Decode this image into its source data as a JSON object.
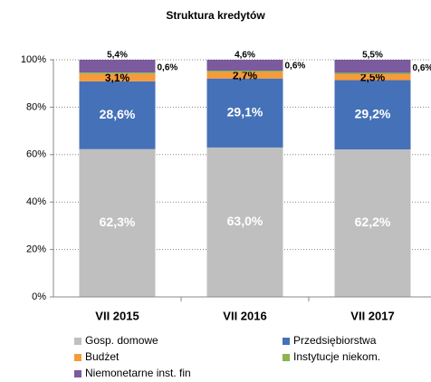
{
  "chart_data": {
    "type": "stacked_bar",
    "title": "Struktura kredytów",
    "categories": [
      "VII 2015",
      "VII 2016",
      "VII 2017"
    ],
    "series": [
      {
        "name": "Gosp. domowe",
        "color": "#bfbfbf",
        "values": [
          62.3,
          63.0,
          62.2
        ],
        "value_labels": [
          "62,3%",
          "63,0%",
          "62,2%"
        ]
      },
      {
        "name": "Przedsiębiorstwa",
        "color": "#4571b8",
        "values": [
          28.6,
          29.1,
          29.2
        ],
        "value_labels": [
          "28,6%",
          "29,1%",
          "29,2%"
        ]
      },
      {
        "name": "Budżet",
        "color": "#f79a3a",
        "values": [
          3.1,
          2.7,
          2.5
        ],
        "value_labels": [
          "3,1%",
          "2,7%",
          "2,5%"
        ]
      },
      {
        "name": "Instytucje niekom.",
        "color": "#8fb34a",
        "values": [
          0.6,
          0.6,
          0.6
        ],
        "value_labels": [
          "0,6%",
          "0,6%",
          "0,6%"
        ]
      },
      {
        "name": "Niemonetarne inst. fin",
        "color": "#7b5a9e",
        "values": [
          5.4,
          4.6,
          5.5
        ],
        "value_labels": [
          "5,4%",
          "4,6%",
          "5,5%"
        ]
      }
    ],
    "ylim": [
      0,
      100
    ],
    "yticks": [
      {
        "value": 0,
        "label": "0%"
      },
      {
        "value": 20,
        "label": "20%"
      },
      {
        "value": 40,
        "label": "40%"
      },
      {
        "value": 60,
        "label": "60%"
      },
      {
        "value": 80,
        "label": "80%"
      },
      {
        "value": 100,
        "label": "100%"
      }
    ],
    "grid": true
  }
}
